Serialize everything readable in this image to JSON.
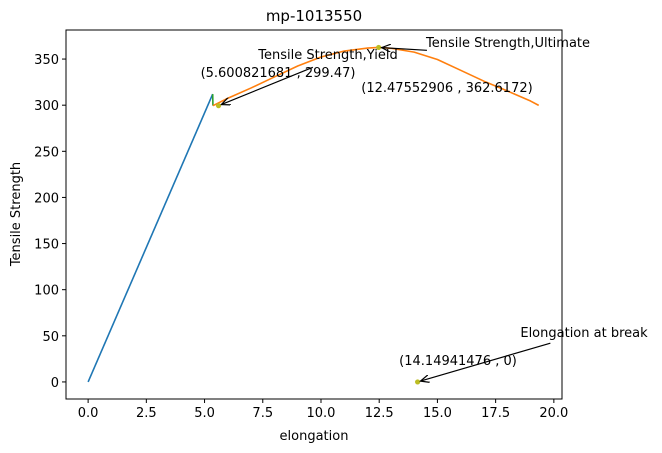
{
  "chart_data": {
    "type": "line",
    "title": "mp-1013550",
    "xlabel": "elongation",
    "ylabel": "Tensile Strength",
    "xlim": [
      -0.95,
      20.35
    ],
    "ylim": [
      -18.5,
      381.5
    ],
    "xticks": [
      0.0,
      2.5,
      5.0,
      7.5,
      10.0,
      12.5,
      15.0,
      17.5,
      20.0
    ],
    "xtick_labels": [
      "0.0",
      "2.5",
      "5.0",
      "7.5",
      "10.0",
      "12.5",
      "15.0",
      "17.5",
      "20.0"
    ],
    "yticks": [
      0,
      50,
      100,
      150,
      200,
      250,
      300,
      350
    ],
    "ytick_labels": [
      "0",
      "50",
      "100",
      "150",
      "200",
      "250",
      "300",
      "350"
    ],
    "grid": false,
    "colors": {
      "elastic": "#1f77b4",
      "plastic": "#ff7f0e",
      "transition": "#2ca02c",
      "points": "#bcbd22",
      "arrow": "#000000"
    },
    "series": [
      {
        "role": "elastic",
        "x": [
          0.0,
          5.35
        ],
        "y": [
          0.0,
          312.0
        ]
      },
      {
        "role": "transition",
        "x": [
          5.35,
          5.36
        ],
        "y": [
          312.0,
          299.47
        ]
      },
      {
        "role": "plastic",
        "x": [
          5.36,
          6.0,
          7.0,
          8.0,
          9.0,
          10.0,
          11.0,
          12.0,
          12.47552906,
          13.0,
          14.0,
          15.0,
          16.0,
          17.0,
          18.0,
          19.0,
          19.35
        ],
        "y": [
          299.47,
          307.5,
          318.7,
          330.6,
          342.5,
          352.2,
          358.7,
          361.9,
          362.6172,
          361.7,
          357.5,
          349.5,
          337.8,
          326.0,
          315.5,
          304.5,
          299.8
        ]
      }
    ],
    "points": [
      {
        "x": 5.600821681,
        "y": 299.47
      },
      {
        "x": 12.47552906,
        "y": 362.6172
      },
      {
        "x": 14.14941476,
        "y": 0
      }
    ],
    "annotations": [
      {
        "text": "Tensile Strength,Yield",
        "coord_text": "(5.600821681 , 299.47)",
        "target": [
          5.600821681,
          299.47
        ],
        "anchor": [
          9.65,
          341.0
        ]
      },
      {
        "text": "Tensile Strength,Ultimate",
        "coord_text": "(12.47552906 , 362.6172)",
        "target": [
          12.47552906,
          362.6172
        ],
        "anchor": [
          14.55,
          359.5
        ]
      },
      {
        "text": "Elongation at break",
        "coord_text": "(14.14941476 , 0)",
        "target": [
          14.14941476,
          0
        ],
        "anchor": [
          19.85,
          42.0
        ]
      }
    ]
  }
}
